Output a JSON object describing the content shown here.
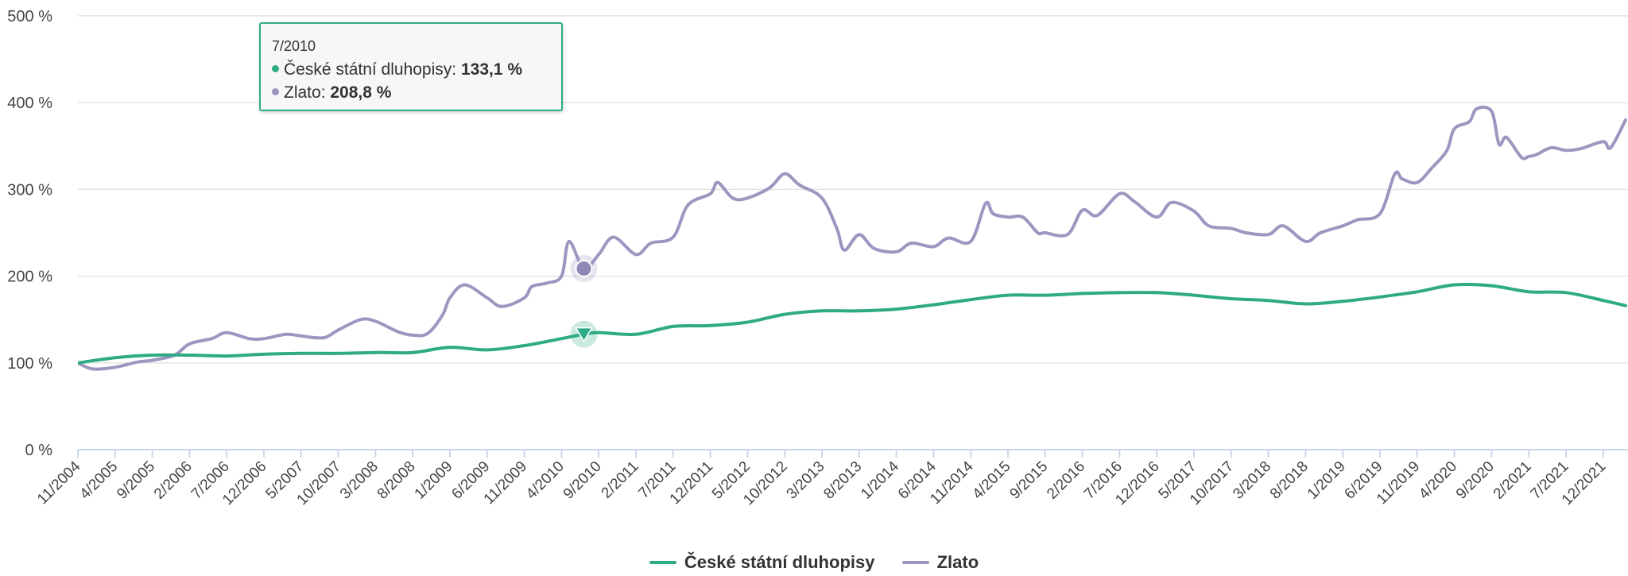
{
  "chart_data": {
    "type": "line",
    "title": "",
    "xlabel": "",
    "ylabel": "",
    "ylim": [
      0,
      500
    ],
    "yticks": [
      "0 %",
      "100 %",
      "200 %",
      "300 %",
      "400 %",
      "500 %"
    ],
    "yticks_values": [
      0,
      100,
      200,
      300,
      400,
      500
    ],
    "grid": true,
    "legend_position": "bottom-center",
    "x_tick_labels": [
      "11/2004",
      "4/2005",
      "9/2005",
      "2/2006",
      "7/2006",
      "12/2006",
      "5/2007",
      "10/2007",
      "3/2008",
      "8/2008",
      "1/2009",
      "6/2009",
      "11/2009",
      "4/2010",
      "9/2010",
      "2/2011",
      "7/2011",
      "12/2011",
      "5/2012",
      "10/2012",
      "3/2013",
      "8/2013",
      "1/2014",
      "6/2014",
      "11/2014",
      "4/2015",
      "9/2015",
      "2/2016",
      "7/2016",
      "12/2016",
      "5/2017",
      "10/2017",
      "3/2018",
      "8/2018",
      "1/2019",
      "6/2019",
      "11/2019",
      "4/2020",
      "9/2020",
      "2/2021",
      "7/2021",
      "12/2021"
    ],
    "x_start": "11/2004",
    "x_end": "3/2022",
    "series": [
      {
        "name": "České státní dluhopisy",
        "color": "#2eaa84",
        "points": [
          [
            "11/2004",
            100
          ],
          [
            "4/2005",
            106
          ],
          [
            "9/2005",
            109
          ],
          [
            "2/2006",
            109
          ],
          [
            "7/2006",
            108
          ],
          [
            "12/2006",
            110
          ],
          [
            "5/2007",
            111
          ],
          [
            "10/2007",
            111
          ],
          [
            "3/2008",
            112
          ],
          [
            "8/2008",
            112
          ],
          [
            "1/2009",
            118
          ],
          [
            "6/2009",
            115
          ],
          [
            "11/2009",
            120
          ],
          [
            "4/2010",
            128
          ],
          [
            "7/2010",
            133.1
          ],
          [
            "9/2010",
            135
          ],
          [
            "2/2011",
            133
          ],
          [
            "7/2011",
            142
          ],
          [
            "12/2011",
            143
          ],
          [
            "5/2012",
            147
          ],
          [
            "10/2012",
            156
          ],
          [
            "3/2013",
            160
          ],
          [
            "8/2013",
            160
          ],
          [
            "1/2014",
            162
          ],
          [
            "6/2014",
            167
          ],
          [
            "11/2014",
            173
          ],
          [
            "4/2015",
            178
          ],
          [
            "9/2015",
            178
          ],
          [
            "2/2016",
            180
          ],
          [
            "7/2016",
            181
          ],
          [
            "12/2016",
            181
          ],
          [
            "5/2017",
            178
          ],
          [
            "10/2017",
            174
          ],
          [
            "3/2018",
            172
          ],
          [
            "8/2018",
            168
          ],
          [
            "1/2019",
            171
          ],
          [
            "6/2019",
            176
          ],
          [
            "11/2019",
            182
          ],
          [
            "4/2020",
            190
          ],
          [
            "9/2020",
            189
          ],
          [
            "2/2021",
            182
          ],
          [
            "7/2021",
            181
          ],
          [
            "12/2021",
            172
          ],
          [
            "3/2022",
            166
          ]
        ]
      },
      {
        "name": "Zlato",
        "color": "#9d96c0",
        "points": [
          [
            "11/2004",
            100
          ],
          [
            "1/2005",
            93
          ],
          [
            "4/2005",
            95
          ],
          [
            "7/2005",
            101
          ],
          [
            "9/2005",
            103
          ],
          [
            "12/2005",
            109
          ],
          [
            "2/2006",
            122
          ],
          [
            "5/2006",
            128
          ],
          [
            "7/2006",
            135
          ],
          [
            "10/2006",
            128
          ],
          [
            "12/2006",
            128
          ],
          [
            "3/2007",
            133
          ],
          [
            "5/2007",
            131
          ],
          [
            "8/2007",
            129
          ],
          [
            "10/2007",
            138
          ],
          [
            "1/2008",
            150
          ],
          [
            "3/2008",
            148
          ],
          [
            "6/2008",
            136
          ],
          [
            "8/2008",
            132
          ],
          [
            "10/2008",
            134
          ],
          [
            "12/2008",
            155
          ],
          [
            "1/2009",
            175
          ],
          [
            "3/2009",
            190
          ],
          [
            "6/2009",
            175
          ],
          [
            "8/2009",
            165
          ],
          [
            "11/2009",
            175
          ],
          [
            "12/2009",
            188
          ],
          [
            "2/2010",
            192
          ],
          [
            "4/2010",
            200
          ],
          [
            "5/2010",
            240
          ],
          [
            "7/2010",
            208.8
          ],
          [
            "9/2010",
            225
          ],
          [
            "11/2010",
            245
          ],
          [
            "2/2011",
            225
          ],
          [
            "4/2011",
            238
          ],
          [
            "7/2011",
            245
          ],
          [
            "9/2011",
            282
          ],
          [
            "12/2011",
            295
          ],
          [
            "1/2012",
            308
          ],
          [
            "3/2012",
            290
          ],
          [
            "5/2012",
            290
          ],
          [
            "8/2012",
            302
          ],
          [
            "10/2012",
            318
          ],
          [
            "12/2012",
            305
          ],
          [
            "3/2013",
            290
          ],
          [
            "5/2013",
            255
          ],
          [
            "6/2013",
            230
          ],
          [
            "8/2013",
            248
          ],
          [
            "10/2013",
            232
          ],
          [
            "1/2014",
            228
          ],
          [
            "3/2014",
            238
          ],
          [
            "6/2014",
            234
          ],
          [
            "8/2014",
            244
          ],
          [
            "11/2014",
            240
          ],
          [
            "1/2015",
            284
          ],
          [
            "2/2015",
            272
          ],
          [
            "4/2015",
            268
          ],
          [
            "6/2015",
            268
          ],
          [
            "8/2015",
            250
          ],
          [
            "9/2015",
            250
          ],
          [
            "12/2015",
            248
          ],
          [
            "2/2016",
            276
          ],
          [
            "4/2016",
            270
          ],
          [
            "7/2016",
            295
          ],
          [
            "9/2016",
            286
          ],
          [
            "12/2016",
            268
          ],
          [
            "2/2017",
            285
          ],
          [
            "5/2017",
            275
          ],
          [
            "7/2017",
            258
          ],
          [
            "10/2017",
            255
          ],
          [
            "12/2017",
            250
          ],
          [
            "3/2018",
            248
          ],
          [
            "5/2018",
            258
          ],
          [
            "8/2018",
            240
          ],
          [
            "10/2018",
            250
          ],
          [
            "1/2019",
            258
          ],
          [
            "3/2019",
            265
          ],
          [
            "6/2019",
            272
          ],
          [
            "8/2019",
            318
          ],
          [
            "9/2019",
            312
          ],
          [
            "11/2019",
            308
          ],
          [
            "1/2020",
            325
          ],
          [
            "3/2020",
            345
          ],
          [
            "4/2020",
            370
          ],
          [
            "6/2020",
            378
          ],
          [
            "7/2020",
            393
          ],
          [
            "9/2020",
            390
          ],
          [
            "10/2020",
            352
          ],
          [
            "11/2020",
            360
          ],
          [
            "1/2021",
            337
          ],
          [
            "2/2021",
            338
          ],
          [
            "3/2021",
            340
          ],
          [
            "5/2021",
            348
          ],
          [
            "7/2021",
            345
          ],
          [
            "9/2021",
            347
          ],
          [
            "12/2021",
            355
          ],
          [
            "1/2022",
            348
          ],
          [
            "3/2022",
            380
          ]
        ]
      }
    ],
    "tooltip": {
      "date": "7/2010",
      "rows": [
        {
          "name": "České státní dluhopisy",
          "value": "133,1 %",
          "color": "#2eaa84"
        },
        {
          "name": "Zlato",
          "value": "208,8 %",
          "color": "#9d96c0"
        }
      ]
    }
  },
  "legend": [
    {
      "label": "České státní dluhopisy",
      "color": "#2eaa84"
    },
    {
      "label": "Zlato",
      "color": "#9d96c0"
    }
  ]
}
